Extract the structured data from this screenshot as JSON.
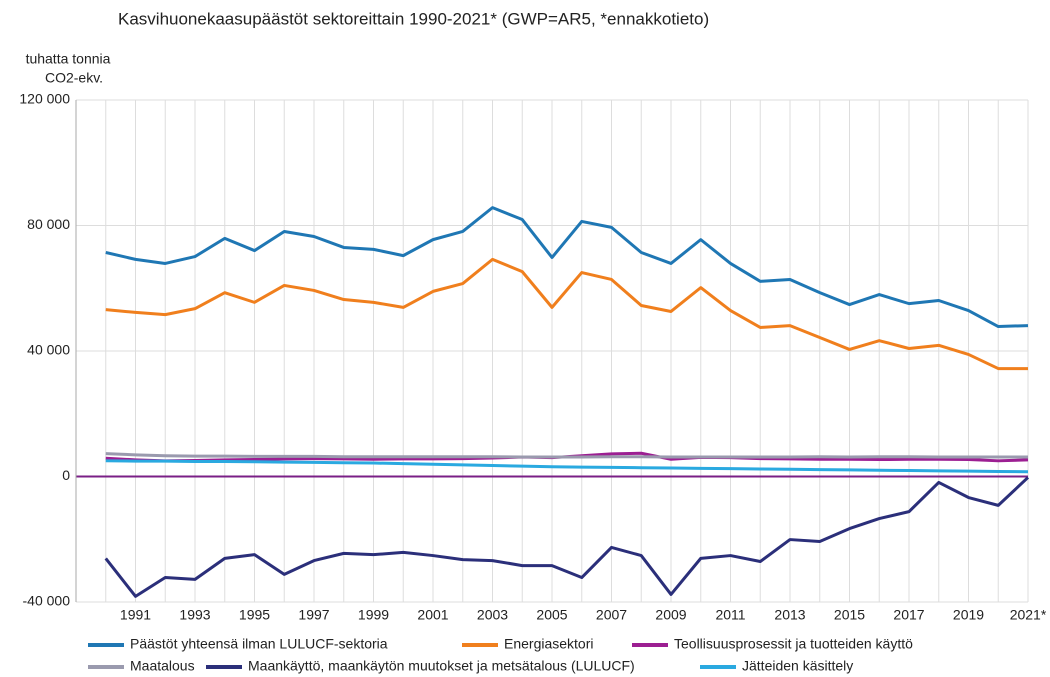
{
  "chart_data": {
    "type": "line",
    "title": "Kasvihuonekaasupäästöt sektoreittain 1990-2021* (GWP=AR5, *ennakkotieto)",
    "y_label_lines": [
      "tuhatta tonnia",
      "CO2-ekv."
    ],
    "categories": [
      null,
      "1991",
      null,
      "1993",
      null,
      "1995",
      null,
      "1997",
      null,
      "1999",
      null,
      "2001",
      null,
      "2003",
      null,
      "2005",
      null,
      "2007",
      null,
      "2009",
      null,
      "2011",
      null,
      "2013",
      null,
      "2015",
      null,
      "2017",
      null,
      "2019",
      null,
      "2021*"
    ],
    "ylim": [
      -40000,
      120000
    ],
    "yticks": [
      {
        "value": -40000,
        "label": "-40 000"
      },
      0,
      {
        "value": 40000,
        "label": "40 000"
      },
      {
        "value": 80000,
        "label": "80 000"
      },
      {
        "value": 120000,
        "label": "120 000"
      }
    ],
    "grid": true,
    "series": [
      {
        "name": "Päästöt yhteensä ilman LULUCF-sektoria",
        "color": "#1f77b4",
        "values": [
          71400,
          69200,
          67900,
          70100,
          75900,
          72000,
          78100,
          76500,
          73000,
          72400,
          70400,
          75500,
          78100,
          85700,
          81900,
          69800,
          81300,
          79400,
          71400,
          67900,
          75500,
          67900,
          62200,
          62800,
          58600,
          54800,
          58000,
          55100,
          56100,
          52900,
          47800,
          48100
        ]
      },
      {
        "name": "Energiasektori",
        "color": "#f07f1d",
        "values": [
          53200,
          52300,
          51600,
          53500,
          58600,
          55500,
          60900,
          59300,
          56400,
          55500,
          53900,
          59000,
          61500,
          69200,
          65300,
          53900,
          65000,
          62800,
          54500,
          52600,
          60200,
          52900,
          47500,
          48100,
          44300,
          40500,
          43300,
          40800,
          41800,
          38900,
          34400,
          34400
        ]
      },
      {
        "name": "Teollisuusprosessit ja tuotteiden käyttö",
        "color": "#9c1f92",
        "values": [
          5800,
          5300,
          5000,
          5100,
          5300,
          5400,
          5600,
          5700,
          5600,
          5500,
          5600,
          5600,
          5700,
          5900,
          6200,
          6000,
          6600,
          7200,
          7400,
          5500,
          6100,
          6000,
          5700,
          5600,
          5500,
          5500,
          5400,
          5500,
          5500,
          5400,
          5000,
          5300
        ]
      },
      {
        "name": "Maatalous",
        "color": "#9a9aae",
        "values": [
          7300,
          6900,
          6600,
          6500,
          6500,
          6400,
          6400,
          6400,
          6300,
          6300,
          6300,
          6300,
          6300,
          6300,
          6200,
          6200,
          6200,
          6300,
          6300,
          6200,
          6200,
          6200,
          6200,
          6200,
          6300,
          6200,
          6300,
          6300,
          6200,
          6200,
          6200,
          6200
        ]
      },
      {
        "name": "Maankäyttö, maankäytön muutokset ja metsätalous (LULUCF)",
        "color": "#2b2f7a",
        "values": [
          -26100,
          -38200,
          -32200,
          -32800,
          -26100,
          -24900,
          -31200,
          -26800,
          -24500,
          -24900,
          -24200,
          -25200,
          -26500,
          -26800,
          -28400,
          -28400,
          -32200,
          -22600,
          -25200,
          -37600,
          -26100,
          -25200,
          -27100,
          -20100,
          -20700,
          -16600,
          -13400,
          -11200,
          -1900,
          -6700,
          -9200,
          -300
        ]
      },
      {
        "name": "Jätteiden käsittely",
        "color": "#2aa9e0",
        "values": [
          5000,
          4900,
          4900,
          4800,
          4800,
          4700,
          4600,
          4500,
          4400,
          4300,
          4100,
          3900,
          3700,
          3500,
          3300,
          3100,
          3000,
          2900,
          2800,
          2700,
          2600,
          2500,
          2400,
          2300,
          2200,
          2100,
          2000,
          1900,
          1800,
          1700,
          1600,
          1500
        ]
      }
    ]
  }
}
